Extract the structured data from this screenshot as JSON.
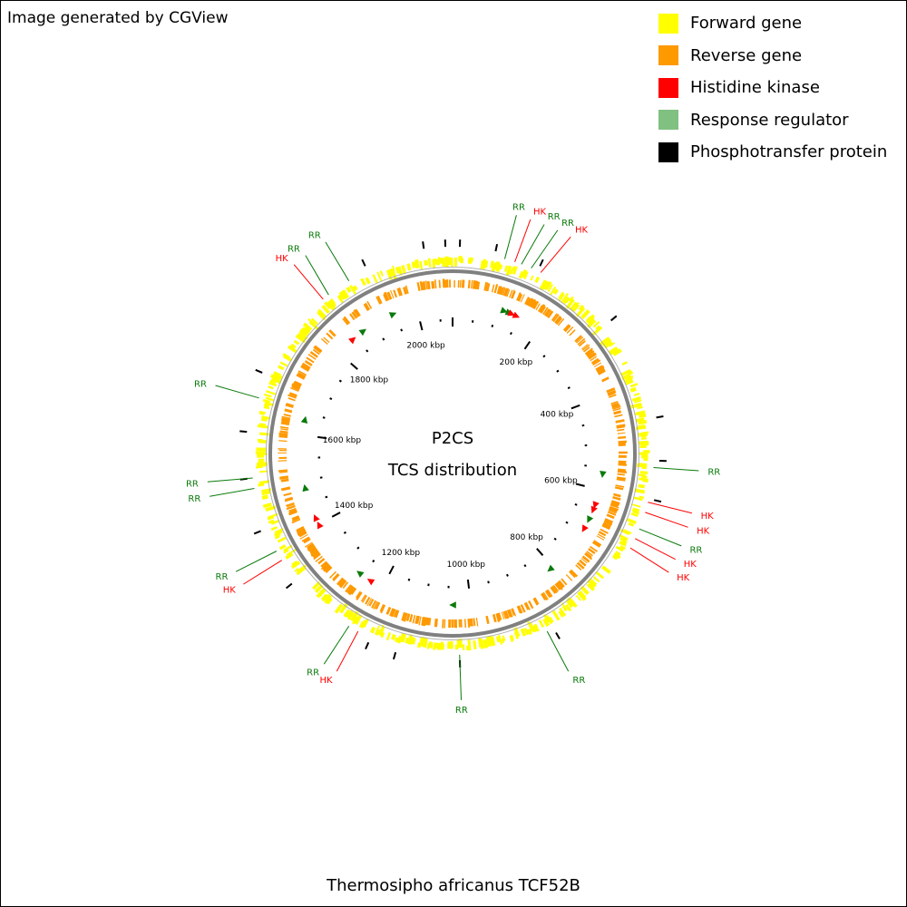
{
  "credit": "Image generated by CGView",
  "organism": "Thermosipho africanus TCF52B",
  "center_title": "P2CS",
  "center_subtitle": "TCS distribution",
  "colors": {
    "forward": "#ffff00",
    "reverse": "#ff9900",
    "hk": "#ff0000",
    "rr": "#0a7a0a",
    "rr_legend": "#80c080",
    "pt": "#000000",
    "backbone": "#808080"
  },
  "legend": [
    {
      "label": "Forward gene",
      "color": "#ffff00"
    },
    {
      "label": "Reverse gene",
      "color": "#ff9900"
    },
    {
      "label": "Histidine kinase",
      "color": "#ff0000"
    },
    {
      "label": "Response regulator",
      "color": "#80c080"
    },
    {
      "label": "Phosphotransfer protein",
      "color": "#000000"
    }
  ],
  "genome_kbp": 2080,
  "kbp_labels": [
    {
      "kbp": 200,
      "text": "200 kbp"
    },
    {
      "kbp": 400,
      "text": "400 kbp"
    },
    {
      "kbp": 600,
      "text": "600 kbp"
    },
    {
      "kbp": 800,
      "text": "800 kbp"
    },
    {
      "kbp": 1000,
      "text": "1000 kbp"
    },
    {
      "kbp": 1200,
      "text": "1200 kbp"
    },
    {
      "kbp": 1400,
      "text": "1400 kbp"
    },
    {
      "kbp": 1600,
      "text": "1600 kbp"
    },
    {
      "kbp": 1800,
      "text": "1800 kbp"
    },
    {
      "kbp": 2000,
      "text": "2000 kbp"
    }
  ],
  "annotations": [
    {
      "text": "RR",
      "type": "rr",
      "angle": 15
    },
    {
      "text": "HK",
      "type": "hk",
      "angle": 18
    },
    {
      "text": "RR",
      "type": "rr",
      "angle": 20
    },
    {
      "text": "RR",
      "type": "rr",
      "angle": 23
    },
    {
      "text": "HK",
      "type": "hk",
      "angle": 26
    },
    {
      "text": "RR",
      "type": "rr",
      "angle": 94
    },
    {
      "text": "HK",
      "type": "hk",
      "angle": 104
    },
    {
      "text": "HK",
      "type": "hk",
      "angle": 107
    },
    {
      "text": "RR",
      "type": "rr",
      "angle": 112
    },
    {
      "text": "HK",
      "type": "hk",
      "angle": 115
    },
    {
      "text": "HK",
      "type": "hk",
      "angle": 118
    },
    {
      "text": "RR",
      "type": "rr",
      "angle": 152
    },
    {
      "text": "RR",
      "type": "rr",
      "angle": 178
    },
    {
      "text": "HK",
      "type": "hk",
      "angle": 208
    },
    {
      "text": "RR",
      "type": "rr",
      "angle": 211
    },
    {
      "text": "HK",
      "type": "hk",
      "angle": 238
    },
    {
      "text": "RR",
      "type": "rr",
      "angle": 241
    },
    {
      "text": "RR",
      "type": "rr",
      "angle": 260
    },
    {
      "text": "RR",
      "type": "rr",
      "angle": 263
    },
    {
      "text": "RR",
      "type": "rr",
      "angle": 286
    },
    {
      "text": "HK",
      "type": "hk",
      "angle": 320
    },
    {
      "text": "RR",
      "type": "rr",
      "angle": 322
    },
    {
      "text": "RR",
      "type": "rr",
      "angle": 329
    }
  ],
  "tcs_markers": [
    {
      "type": "rr",
      "angle": 20
    },
    {
      "type": "rr",
      "angle": 22
    },
    {
      "type": "hk",
      "angle": 23
    },
    {
      "type": "hk",
      "angle": 25
    },
    {
      "type": "rr",
      "angle": 98
    },
    {
      "type": "hk",
      "angle": 110
    },
    {
      "type": "hk",
      "angle": 112
    },
    {
      "type": "rr",
      "angle": 116
    },
    {
      "type": "hk",
      "angle": 120
    },
    {
      "type": "rr",
      "angle": 140
    },
    {
      "type": "rr",
      "angle": 180
    },
    {
      "type": "hk",
      "angle": 213
    },
    {
      "type": "rr",
      "angle": 218
    },
    {
      "type": "hk",
      "angle": 242
    },
    {
      "type": "hk",
      "angle": 245
    },
    {
      "type": "rr",
      "angle": 257
    },
    {
      "type": "rr",
      "angle": 283
    },
    {
      "type": "hk",
      "angle": 319
    },
    {
      "type": "rr",
      "angle": 324
    },
    {
      "type": "rr",
      "angle": 337
    }
  ],
  "pt_ticks": [
    2,
    12,
    25,
    50,
    80,
    92,
    103,
    150,
    178,
    196,
    204,
    231,
    248,
    263,
    276,
    293,
    335,
    352,
    358
  ]
}
